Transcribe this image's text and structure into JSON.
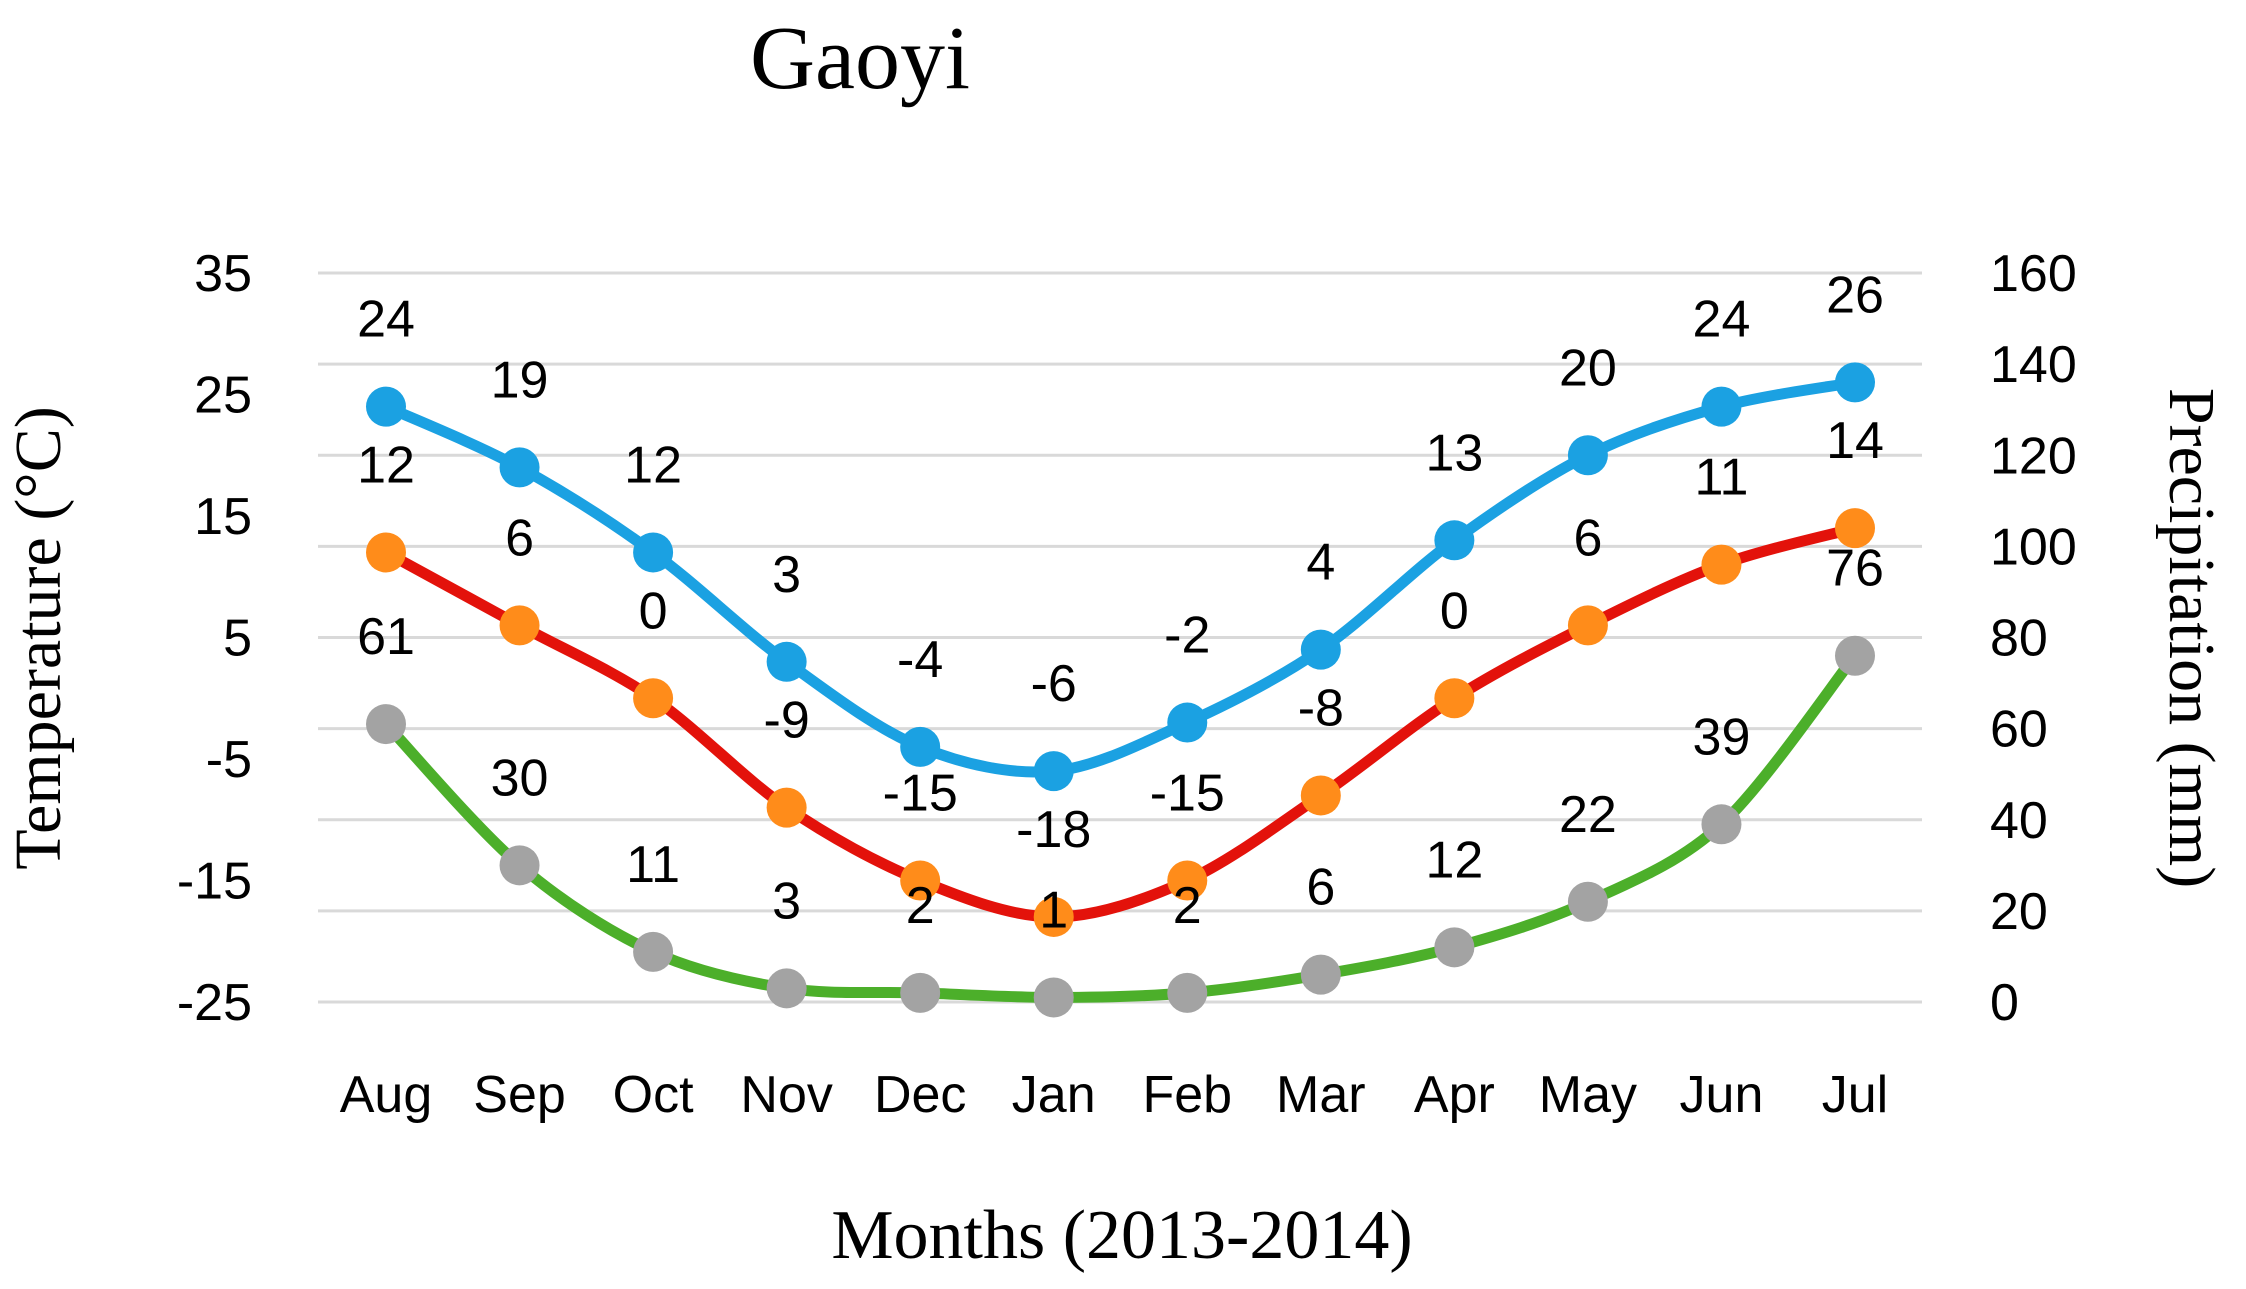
{
  "chart_data": {
    "type": "line",
    "title": "Gaoyi",
    "xlabel": "Months (2013-2014)",
    "ylabel_left": "Temperature (°C)",
    "ylabel_right": "Precipitation (mm)",
    "categories": [
      "Aug",
      "Sep",
      "Oct",
      "Nov",
      "Dec",
      "Jan",
      "Feb",
      "Mar",
      "Apr",
      "May",
      "Jun",
      "Jul"
    ],
    "y_left": {
      "min": -25,
      "max": 35,
      "ticks": [
        "35",
        "25",
        "15",
        "5",
        "-5",
        "-15",
        "-25"
      ]
    },
    "y_right": {
      "min": 0,
      "max": 160,
      "ticks": [
        "160",
        "140",
        "120",
        "100",
        "80",
        "60",
        "40",
        "20",
        "0"
      ]
    },
    "grid": true,
    "legend": "none",
    "series": [
      {
        "axis": "left",
        "line_color": "#1ba1e2",
        "marker_color": "#1ba1e2",
        "values": [
          24,
          19,
          12,
          3,
          -4,
          -6,
          -2,
          4,
          13,
          20,
          24,
          26
        ],
        "labels": [
          "24",
          "19",
          "12",
          "3",
          "-4",
          "-6",
          "-2",
          "4",
          "13",
          "20",
          "24",
          "26"
        ]
      },
      {
        "axis": "left",
        "line_color": "#e3120b",
        "marker_color": "#ff8c1a",
        "values": [
          12,
          6,
          0,
          -9,
          -15,
          -18,
          -15,
          -8,
          0,
          6,
          11,
          14
        ],
        "labels": [
          "12",
          "6",
          "0",
          "-9",
          "-15",
          "-18",
          "-15",
          "-8",
          "0",
          "6",
          "11",
          "14"
        ]
      },
      {
        "axis": "right",
        "line_color": "#4caf2a",
        "marker_color": "#a3a3a3",
        "values": [
          61,
          30,
          11,
          3,
          2,
          1,
          2,
          6,
          12,
          22,
          39,
          76
        ],
        "labels": [
          "61",
          "30",
          "11",
          "3",
          "2",
          "1",
          "2",
          "6",
          "12",
          "22",
          "39",
          "76"
        ]
      }
    ]
  }
}
